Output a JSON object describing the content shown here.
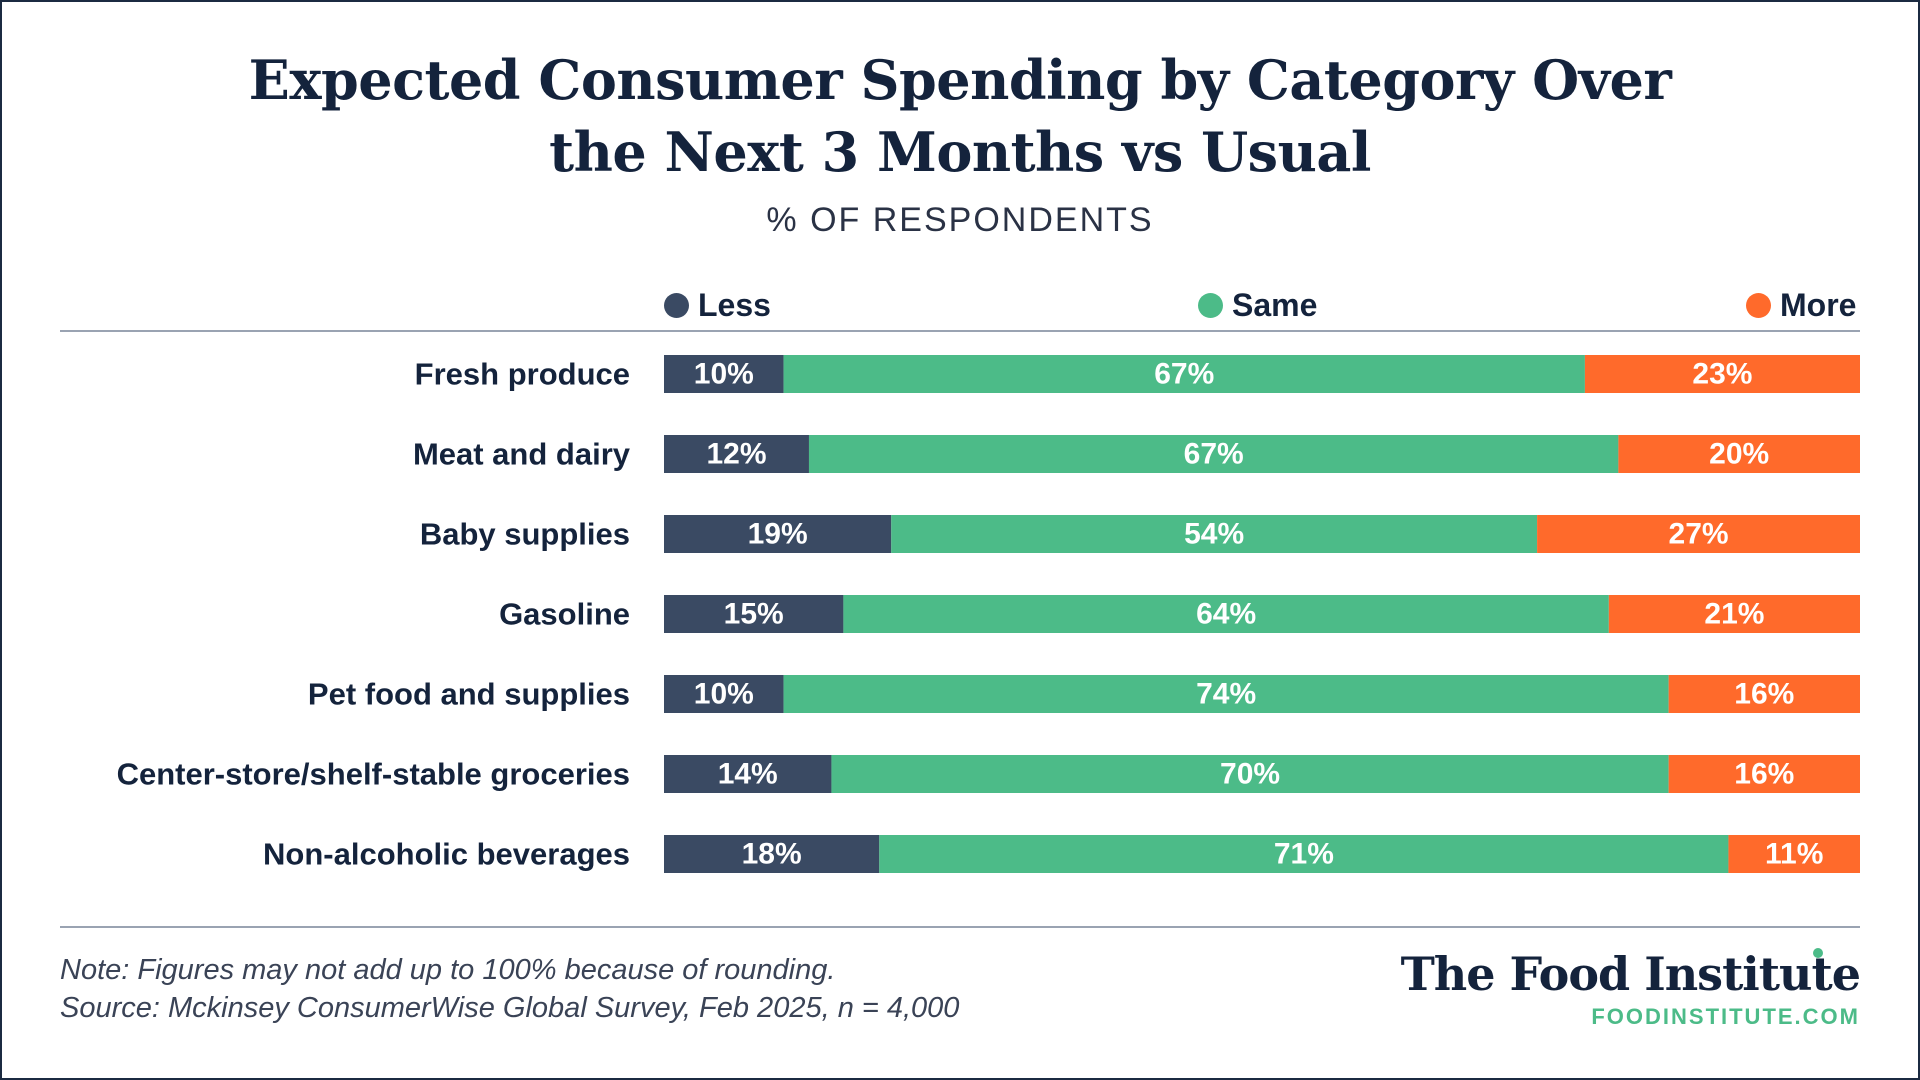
{
  "header": {
    "title_line1": "Expected Consumer Spending by Category Over",
    "title_line2": "the Next 3 Months vs Usual",
    "subtitle": "% OF RESPONDENTS"
  },
  "legend": [
    {
      "label": "Less",
      "color": "#3a4a63"
    },
    {
      "label": "Same",
      "color": "#4cbb88"
    },
    {
      "label": "More",
      "color": "#ff6a2b"
    }
  ],
  "chart_data": {
    "type": "bar",
    "orientation": "horizontal",
    "stacked": true,
    "normalized_to_100": true,
    "categories": [
      "Fresh produce",
      "Meat and dairy",
      "Baby supplies",
      "Gasoline",
      "Pet food and supplies",
      "Center-store/shelf-stable groceries",
      "Non-alcoholic beverages"
    ],
    "series": [
      {
        "name": "Less",
        "color": "#3a4a63",
        "values": [
          10,
          12,
          19,
          15,
          10,
          14,
          18
        ]
      },
      {
        "name": "Same",
        "color": "#4cbb88",
        "values": [
          67,
          67,
          54,
          64,
          74,
          70,
          71
        ]
      },
      {
        "name": "More",
        "color": "#ff6a2b",
        "values": [
          23,
          20,
          27,
          21,
          16,
          16,
          11
        ]
      }
    ],
    "value_suffix": "%",
    "legend_position": "top",
    "grid": false
  },
  "footer": {
    "note": "Note: Figures may not add up to 100% because of rounding.",
    "source": "Source: Mckinsey ConsumerWise Global Survey, Feb 2025, n = 4,000",
    "brand_name": "The Food Institute",
    "brand_url": "FOODINSTITUTE.COM"
  }
}
